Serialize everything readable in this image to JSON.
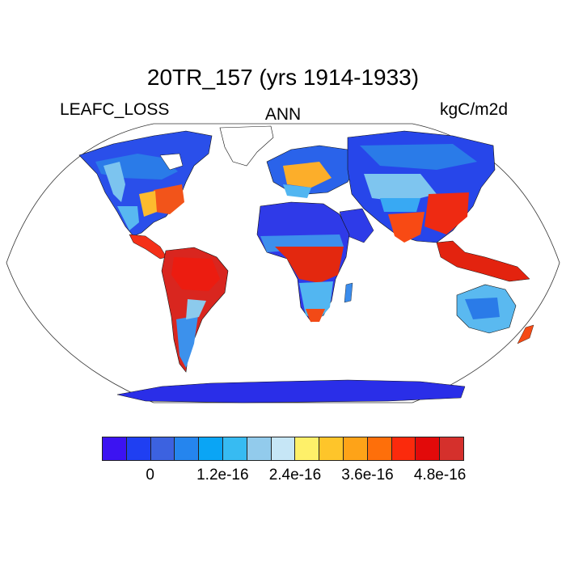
{
  "title": "20TR_157 (yrs 1914-1933)",
  "left_label": "LEAFC_LOSS",
  "center_label": "ANN",
  "right_label": "kgC/m2d",
  "colorbar": {
    "colors": [
      "#3c13f2",
      "#1f3ff2",
      "#3c62e0",
      "#2585ee",
      "#0aa5f5",
      "#37bbf2",
      "#92cbec",
      "#c6e6f6",
      "#fef069",
      "#fec52a",
      "#fea318",
      "#fe6f0a",
      "#fb2a0c",
      "#e20a0a",
      "#d5302c"
    ],
    "ticks": [
      {
        "label": "0",
        "boundary": 2
      },
      {
        "label": "1.2e-16",
        "boundary": 5
      },
      {
        "label": "2.4e-16",
        "boundary": 8
      },
      {
        "label": "3.6e-16",
        "boundary": 11
      },
      {
        "label": "4.8e-16",
        "boundary": 14
      }
    ]
  },
  "map": {
    "projection": "Robinson",
    "ocean_color": "#ffffff",
    "coastline_color": "#000000"
  }
}
